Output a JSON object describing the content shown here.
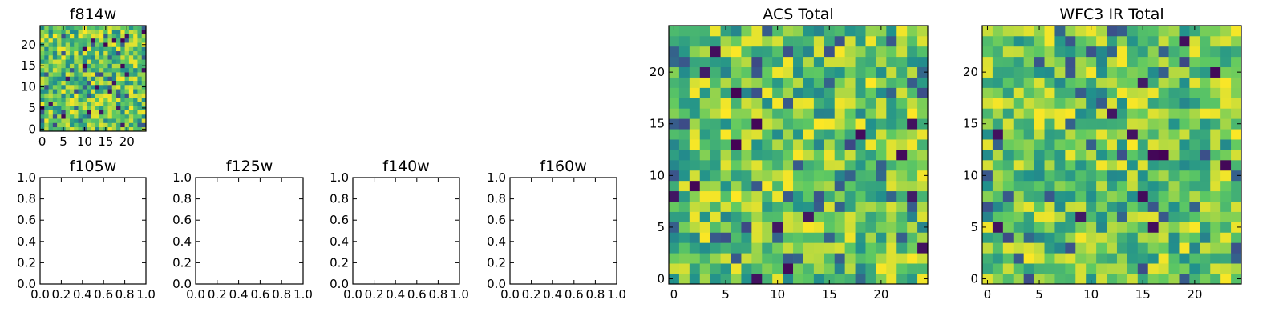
{
  "colormap": {
    "name": "viridis",
    "stops": [
      "#440154",
      "#3b528b",
      "#21918c",
      "#5ec962",
      "#fde725"
    ],
    "value_range": [
      0,
      1
    ]
  },
  "chart_data": [
    {
      "type": "heatmap",
      "id": "f814w",
      "title": "f814w",
      "grid_size": [
        25,
        25
      ],
      "origin": "lower",
      "xlim": [
        -0.5,
        24.5
      ],
      "ylim": [
        -0.5,
        24.5
      ],
      "xticks": [
        0,
        5,
        10,
        15,
        20
      ],
      "yticks": [
        0,
        5,
        10,
        15,
        20
      ],
      "xtick_labels": [
        "0",
        "5",
        "10",
        "15",
        "20"
      ],
      "ytick_labels": [
        "0",
        "5",
        "10",
        "15",
        "20"
      ],
      "xlabel": "",
      "ylabel": "",
      "seed": 814,
      "note_values": "random noise pixel values; 25x25 grid, exact values not recoverable"
    },
    {
      "type": "heatmap",
      "id": "f105w",
      "title": "f105w",
      "empty": true,
      "xlim": [
        0,
        1
      ],
      "ylim": [
        0,
        1
      ],
      "xticks": [
        0,
        0.2,
        0.4,
        0.6,
        0.8,
        1.0
      ],
      "yticks": [
        0,
        0.2,
        0.4,
        0.6,
        0.8,
        1.0
      ],
      "xtick_labels": [
        "0.0",
        "0.2",
        "0.4",
        "0.6",
        "0.8",
        "1.0"
      ],
      "ytick_labels": [
        "0.0",
        "0.2",
        "0.4",
        "0.6",
        "0.8",
        "1.0"
      ],
      "xlabel": "",
      "ylabel": ""
    },
    {
      "type": "heatmap",
      "id": "f125w",
      "title": "f125w",
      "empty": true,
      "xlim": [
        0,
        1
      ],
      "ylim": [
        0,
        1
      ],
      "xticks": [
        0,
        0.2,
        0.4,
        0.6,
        0.8,
        1.0
      ],
      "yticks": [
        0,
        0.2,
        0.4,
        0.6,
        0.8,
        1.0
      ],
      "xtick_labels": [
        "0.0",
        "0.2",
        "0.4",
        "0.6",
        "0.8",
        "1.0"
      ],
      "ytick_labels": [
        "0.0",
        "0.2",
        "0.4",
        "0.6",
        "0.8",
        "1.0"
      ],
      "xlabel": "",
      "ylabel": ""
    },
    {
      "type": "heatmap",
      "id": "f140w",
      "title": "f140w",
      "empty": true,
      "xlim": [
        0,
        1
      ],
      "ylim": [
        0,
        1
      ],
      "xticks": [
        0,
        0.2,
        0.4,
        0.6,
        0.8,
        1.0
      ],
      "yticks": [
        0,
        0.2,
        0.4,
        0.6,
        0.8,
        1.0
      ],
      "xtick_labels": [
        "0.0",
        "0.2",
        "0.4",
        "0.6",
        "0.8",
        "1.0"
      ],
      "ytick_labels": [
        "0.0",
        "0.2",
        "0.4",
        "0.6",
        "0.8",
        "1.0"
      ],
      "xlabel": "",
      "ylabel": ""
    },
    {
      "type": "heatmap",
      "id": "f160w",
      "title": "f160w",
      "empty": true,
      "xlim": [
        0,
        1
      ],
      "ylim": [
        0,
        1
      ],
      "xticks": [
        0,
        0.2,
        0.4,
        0.6,
        0.8,
        1.0
      ],
      "yticks": [
        0,
        0.2,
        0.4,
        0.6,
        0.8,
        1.0
      ],
      "xtick_labels": [
        "0.0",
        "0.2",
        "0.4",
        "0.6",
        "0.8",
        "1.0"
      ],
      "ytick_labels": [
        "0.0",
        "0.2",
        "0.4",
        "0.6",
        "0.8",
        "1.0"
      ],
      "xlabel": "",
      "ylabel": ""
    },
    {
      "type": "heatmap",
      "id": "acs_total",
      "title": "ACS Total",
      "grid_size": [
        25,
        25
      ],
      "origin": "lower",
      "xlim": [
        -0.5,
        24.5
      ],
      "ylim": [
        -0.5,
        24.5
      ],
      "xticks": [
        0,
        5,
        10,
        15,
        20
      ],
      "yticks": [
        0,
        5,
        10,
        15,
        20
      ],
      "xtick_labels": [
        "0",
        "5",
        "10",
        "15",
        "20"
      ],
      "ytick_labels": [
        "0",
        "5",
        "10",
        "15",
        "20"
      ],
      "xlabel": "",
      "ylabel": "",
      "seed": 1001,
      "note_values": "random noise pixel values; 25x25 grid, exact values not recoverable"
    },
    {
      "type": "heatmap",
      "id": "wfc3_ir_total",
      "title": "WFC3 IR Total",
      "grid_size": [
        25,
        25
      ],
      "origin": "lower",
      "xlim": [
        -0.5,
        24.5
      ],
      "ylim": [
        -0.5,
        24.5
      ],
      "xticks": [
        0,
        5,
        10,
        15,
        20
      ],
      "yticks": [
        0,
        5,
        10,
        15,
        20
      ],
      "xtick_labels": [
        "0",
        "5",
        "10",
        "15",
        "20"
      ],
      "ytick_labels": [
        "0",
        "5",
        "10",
        "15",
        "20"
      ],
      "xlabel": "",
      "ylabel": "",
      "seed": 3160,
      "note_values": "random noise pixel values; 25x25 grid, exact values not recoverable"
    }
  ]
}
